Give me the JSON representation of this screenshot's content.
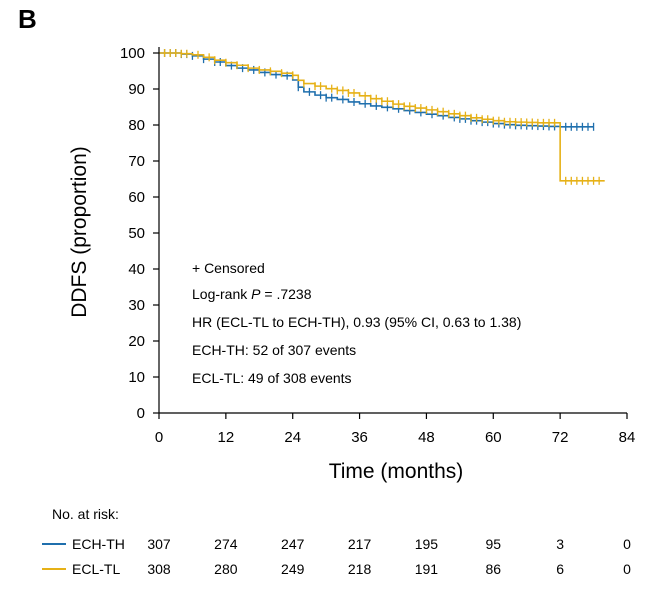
{
  "chart_data": {
    "type": "line",
    "subtype": "kaplan-meier",
    "panel_label": "B",
    "xlabel": "Time (months)",
    "ylabel": "DDFS (proportion)",
    "xlim": [
      0,
      84
    ],
    "ylim": [
      0,
      100
    ],
    "xticks": [
      0,
      12,
      24,
      36,
      48,
      60,
      72,
      84
    ],
    "yticks": [
      0,
      10,
      20,
      30,
      40,
      50,
      60,
      70,
      80,
      90,
      100
    ],
    "grid": false,
    "annotations": {
      "censored": "+ Censored",
      "logrank_prefix": "Log-rank ",
      "logrank_p": "P",
      "logrank_value": " = .7238",
      "hr": "HR (ECL-TL to ECH-TH), 0.93 (95% CI, 0.63 to 1.38)",
      "ech_events": "ECH-TH: 52 of 307 events",
      "ecl_events": "ECL-TL: 49 of 308 events"
    },
    "series": [
      {
        "name": "ECH-TH",
        "color": "#1f6fad",
        "x": [
          0,
          2,
          4,
          6,
          8,
          10,
          12,
          14,
          16,
          18,
          20,
          22,
          24,
          25,
          26,
          28,
          30,
          32,
          34,
          36,
          38,
          40,
          42,
          44,
          46,
          48,
          50,
          52,
          54,
          56,
          58,
          60,
          62,
          64,
          66,
          68,
          70,
          72,
          78
        ],
        "y": [
          100,
          100,
          99.7,
          99.2,
          98.3,
          97.5,
          96.5,
          95.8,
          95.3,
          94.6,
          94,
          93.7,
          92.5,
          90.5,
          89.2,
          88.3,
          87.6,
          87.1,
          86.4,
          85.9,
          85.3,
          84.9,
          84.5,
          84,
          83.5,
          83,
          82.6,
          82.1,
          81.7,
          81.2,
          80.8,
          80.4,
          80.1,
          79.9,
          79.8,
          79.7,
          79.6,
          79.5,
          79.5
        ],
        "censor_x": [
          1,
          2,
          3,
          4,
          5,
          6,
          8,
          10,
          11,
          13,
          15,
          17,
          19,
          21,
          23,
          25,
          27,
          29,
          30,
          31,
          33,
          35,
          37,
          39,
          41,
          43,
          45,
          47,
          49,
          51,
          53,
          54,
          55,
          56,
          57,
          58,
          59,
          60,
          61,
          62,
          63,
          64,
          65,
          66,
          67,
          68,
          69,
          70,
          71,
          72,
          73,
          74,
          75,
          76,
          77,
          78
        ]
      },
      {
        "name": "ECL-TL",
        "color": "#e6b117",
        "x": [
          0,
          2,
          4,
          6,
          8,
          10,
          12,
          14,
          16,
          18,
          20,
          22,
          24,
          25,
          26,
          28,
          30,
          32,
          34,
          36,
          38,
          40,
          42,
          44,
          46,
          48,
          50,
          52,
          54,
          56,
          58,
          60,
          62,
          64,
          66,
          68,
          70,
          72,
          80
        ],
        "y": [
          100,
          100,
          99.8,
          99.5,
          98.8,
          98,
          97.3,
          96.6,
          95.8,
          95.3,
          94.9,
          94.4,
          93.8,
          92.4,
          91.5,
          90.8,
          90.1,
          89.6,
          88.9,
          88.1,
          87.3,
          86.6,
          85.8,
          85.2,
          84.7,
          84.2,
          83.7,
          83.1,
          82.6,
          82,
          81.6,
          81.2,
          80.9,
          80.8,
          80.7,
          80.6,
          80.6,
          64.5,
          64.5
        ],
        "censor_x": [
          1,
          2,
          3,
          4,
          5,
          7,
          9,
          10,
          12,
          14,
          16,
          18,
          20,
          22,
          24,
          26,
          28,
          29,
          31,
          32,
          33,
          34,
          35,
          37,
          38,
          39,
          40,
          41,
          42,
          43,
          44,
          45,
          46,
          47,
          48,
          49,
          50,
          51,
          52,
          53,
          54,
          55,
          56,
          57,
          58,
          59,
          60,
          61,
          62,
          63,
          64,
          65,
          66,
          67,
          68,
          69,
          70,
          71,
          73,
          74,
          75,
          76,
          77,
          78,
          79
        ]
      }
    ],
    "risk_table": {
      "title": "No. at risk:",
      "times": [
        0,
        12,
        24,
        36,
        48,
        60,
        72,
        84
      ],
      "rows": [
        {
          "name": "ECH-TH",
          "color": "#1f6fad",
          "counts": [
            "307",
            "274",
            "247",
            "217",
            "195",
            "95",
            "3",
            "0"
          ]
        },
        {
          "name": "ECL-TL",
          "color": "#e6b117",
          "counts": [
            "308",
            "280",
            "249",
            "218",
            "191",
            "86",
            "6",
            "0"
          ]
        }
      ]
    }
  }
}
